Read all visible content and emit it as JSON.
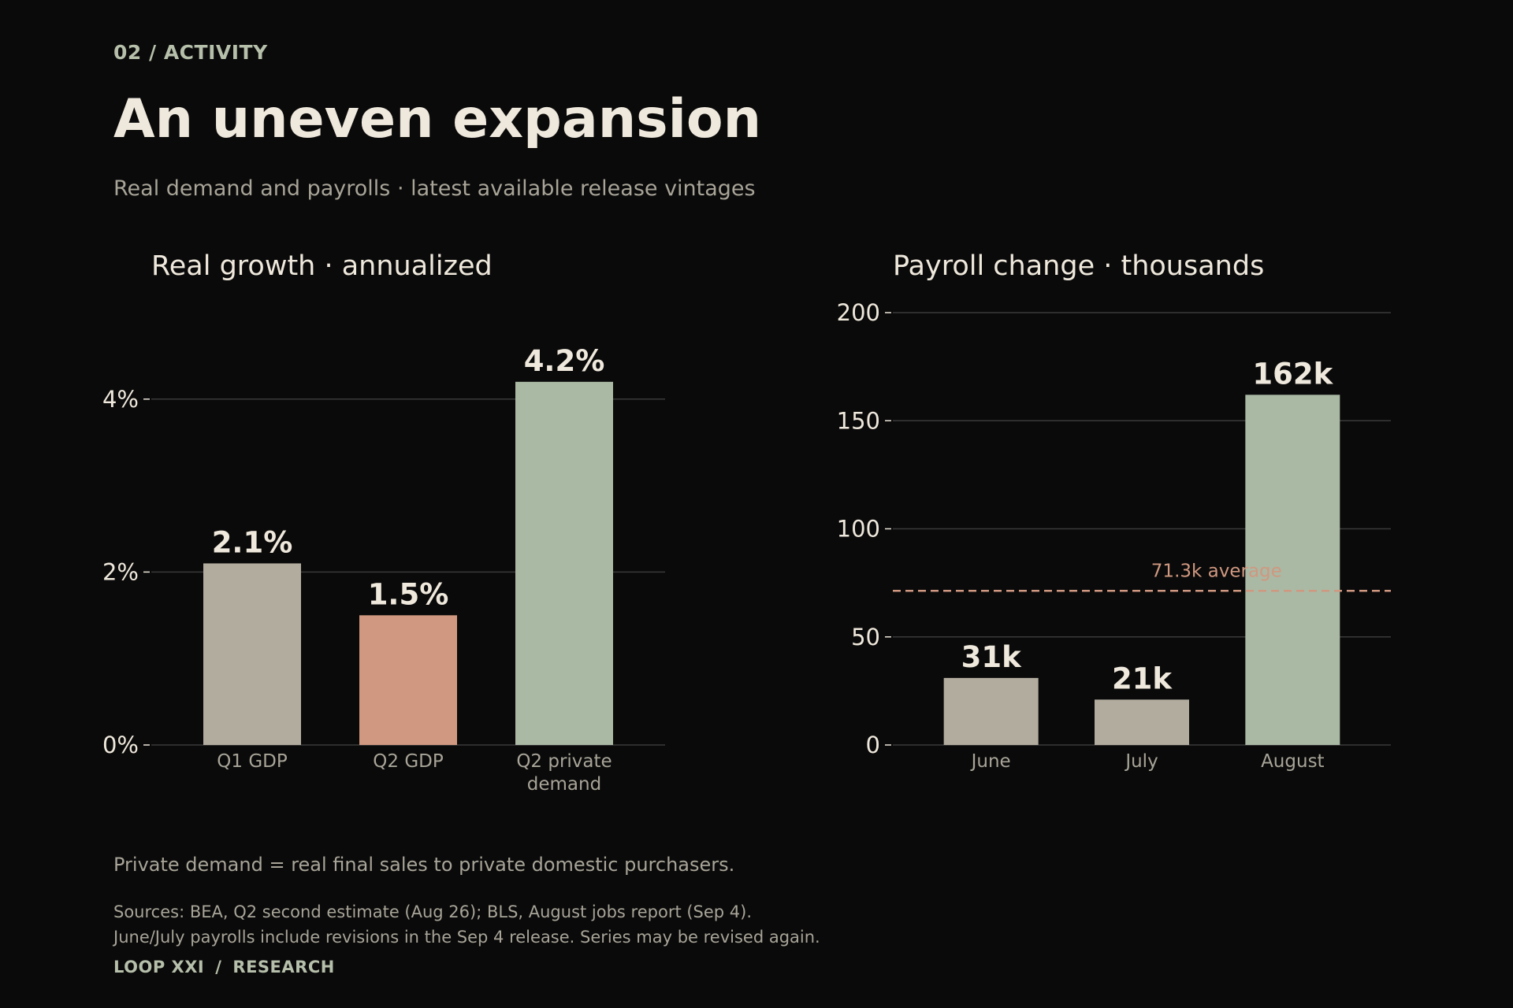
{
  "header": {
    "kicker": "02 / ACTIVITY",
    "title": "An uneven expansion",
    "subtitle": "Real demand and payrolls · latest available release vintages"
  },
  "colors": {
    "background": "#0a0a0a",
    "neutral_bar": "#b2ac9e",
    "accent_bar": "#d09880",
    "green_bar": "#aab9a4",
    "average_line": "#d09880",
    "grid": "#3a3a3a",
    "text": "#efe8dc",
    "muted_text": "#a8a498"
  },
  "chart_data": [
    {
      "type": "bar",
      "title": "Real growth · annualized",
      "categories": [
        "Q1 GDP",
        "Q2 GDP",
        "Q2 private demand"
      ],
      "values": [
        2.1,
        1.5,
        4.2
      ],
      "value_labels": [
        "2.1%",
        "1.5%",
        "4.2%"
      ],
      "bar_colors": [
        "#b2ac9e",
        "#d09880",
        "#aab9a4"
      ],
      "ylim": [
        0,
        5.0
      ],
      "yticks": [
        0,
        2,
        4
      ],
      "ytick_labels": [
        "0%",
        "2%",
        "4%"
      ],
      "xlabel": "",
      "ylabel": "",
      "grid": true
    },
    {
      "type": "bar",
      "title": "Payroll change · thousands",
      "categories": [
        "June",
        "July",
        "August"
      ],
      "values": [
        31,
        21,
        162
      ],
      "value_labels": [
        "31k",
        "21k",
        "162k"
      ],
      "bar_colors": [
        "#b2ac9e",
        "#b2ac9e",
        "#aab9a4"
      ],
      "ylim": [
        0,
        200
      ],
      "yticks": [
        0,
        50,
        100,
        150,
        200
      ],
      "ytick_labels": [
        "0",
        "50",
        "100",
        "150",
        "200"
      ],
      "reference_line": {
        "value": 71.3,
        "label": "71.3k average",
        "style": "dashed"
      },
      "xlabel": "",
      "ylabel": "",
      "grid": true
    }
  ],
  "footer": {
    "note": "Private demand = real final sales to private domestic purchasers.",
    "source_line_1": "Sources: BEA, Q2 second estimate (Aug 26); BLS, August jobs report (Sep 4).",
    "source_line_2": "June/July payrolls include revisions in the Sep 4 release. Series may be revised again.",
    "brand_left": "LOOP XXI",
    "brand_sep": "/",
    "brand_right": "RESEARCH"
  }
}
